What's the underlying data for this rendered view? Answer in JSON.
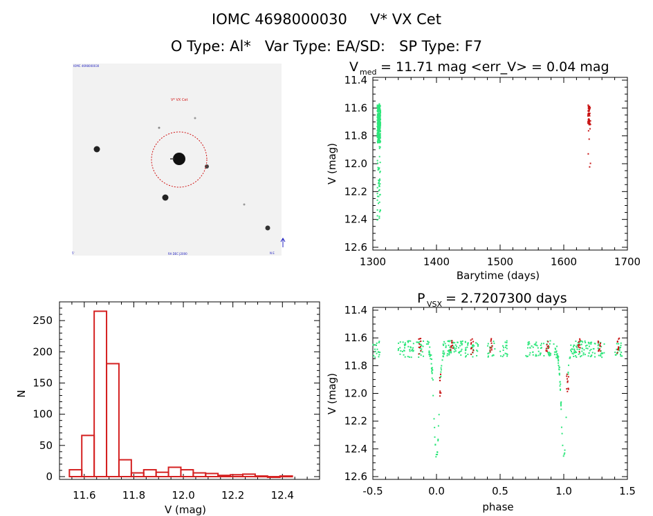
{
  "header": {
    "line1": "IOMC 4698000030     V* VX Cet",
    "line2": "O Type: Al*   Var Type: EA/SD:   SP Type: F7"
  },
  "image_panel": {
    "target_label": "V* VX Cet",
    "corner_top_left": "IOMC 4698000030",
    "bottom_left": "5'",
    "bottom_center": "RA DEC J2000",
    "bottom_right": "N E"
  },
  "colors": {
    "series_green": "#2ce67a",
    "series_red": "#c81414",
    "hist_bar": "#d42020"
  },
  "chart_data": [
    {
      "id": "lightcurve",
      "type": "scatter",
      "title_main": "V",
      "title_sub": "med",
      "title_rest": " = 11.71 mag <err_V> = 0.04 mag",
      "xlabel": "Barytime (days)",
      "ylabel": "V (mag)",
      "xlim": [
        1300,
        1700
      ],
      "ylim": [
        12.62,
        11.38
      ],
      "xticks": [
        1300,
        1400,
        1500,
        1600,
        1700
      ],
      "yticks": [
        "11.4",
        "11.6",
        "11.8",
        "12.0",
        "12.2",
        "12.4",
        "12.6"
      ],
      "series": [
        {
          "color": "green",
          "x_range": [
            1307,
            1312
          ],
          "y_range": [
            11.54,
            12.46
          ],
          "core": [
            11.58,
            11.85
          ]
        },
        {
          "color": "red",
          "x_range": [
            1638,
            1642
          ],
          "y_range": [
            11.55,
            12.05
          ],
          "core": [
            11.58,
            11.72
          ]
        }
      ]
    },
    {
      "id": "histogram",
      "type": "bar",
      "xlabel": "V (mag)",
      "ylabel": "N",
      "xlim": [
        11.5,
        12.55
      ],
      "ylim": [
        0,
        280
      ],
      "xticks": [
        "11.6",
        "11.8",
        "12.0",
        "12.2",
        "12.4"
      ],
      "yticks": [
        "0",
        "50",
        "100",
        "150",
        "200",
        "250"
      ],
      "bin_width": 0.05,
      "bins": [
        {
          "x0": 11.54,
          "n": 11
        },
        {
          "x0": 11.59,
          "n": 66
        },
        {
          "x0": 11.64,
          "n": 265
        },
        {
          "x0": 11.69,
          "n": 181
        },
        {
          "x0": 11.74,
          "n": 27
        },
        {
          "x0": 11.79,
          "n": 6
        },
        {
          "x0": 11.84,
          "n": 11
        },
        {
          "x0": 11.89,
          "n": 7
        },
        {
          "x0": 11.94,
          "n": 15
        },
        {
          "x0": 11.99,
          "n": 11
        },
        {
          "x0": 12.04,
          "n": 6
        },
        {
          "x0": 12.09,
          "n": 5
        },
        {
          "x0": 12.14,
          "n": 2
        },
        {
          "x0": 12.19,
          "n": 3
        },
        {
          "x0": 12.24,
          "n": 4
        },
        {
          "x0": 12.29,
          "n": 1
        },
        {
          "x0": 12.34,
          "n": 0
        },
        {
          "x0": 12.39,
          "n": 1
        }
      ]
    },
    {
      "id": "phased",
      "type": "scatter",
      "title_main": "P",
      "title_sub": "VSX",
      "title_rest": " = 2.7207300 days",
      "xlabel": "phase",
      "ylabel": "V (mag)",
      "xlim": [
        -0.5,
        1.5
      ],
      "ylim": [
        12.62,
        11.38
      ],
      "xticks": [
        "-0.5",
        "0.0",
        "0.5",
        "1.0",
        "1.5"
      ],
      "yticks": [
        "11.4",
        "11.6",
        "11.8",
        "12.0",
        "12.2",
        "12.4",
        "12.6"
      ],
      "eclipse": {
        "phase": 0.0,
        "depth_mag": 12.46,
        "baseline_mag": 11.7,
        "width": 0.06
      },
      "red_segments": [
        -0.13,
        0.12,
        0.28,
        0.43,
        0.87,
        1.12,
        1.28,
        1.43
      ]
    }
  ]
}
